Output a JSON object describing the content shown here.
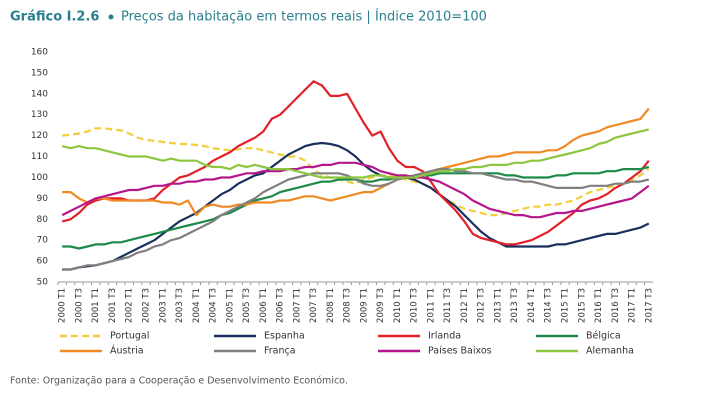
{
  "chart_data": {
    "type": "line",
    "title": "Gráfico I.2.6",
    "subtitle": "Preços da habitação em termos reais | Índice 2010=100",
    "source": "Fonte: Organização para a Cooperação e Desenvolvimento Económico.",
    "legend": "bottom",
    "ylim": [
      50,
      160
    ],
    "yticks": [
      50,
      60,
      70,
      80,
      90,
      100,
      110,
      120,
      130,
      140,
      150,
      160
    ],
    "categories": [
      "2000 T1",
      null,
      "2000 T3",
      null,
      "2001 T1",
      null,
      "2001 T3",
      null,
      "2002 T1",
      null,
      "2002 T3",
      null,
      "2003 T1",
      null,
      "2003 T3",
      null,
      "2004 T1",
      null,
      "2004 T3",
      null,
      "2005 T1",
      null,
      "2005 T3",
      null,
      "2006 T1",
      null,
      "2006 T3",
      null,
      "2007 T1",
      null,
      "2007 T3",
      null,
      "2008 T1",
      null,
      "2008 T3",
      null,
      "2009 T1",
      null,
      "2009 T3",
      null,
      "2010 T1",
      null,
      "2010 T3",
      null,
      "2011 T1",
      null,
      "2011 T3",
      null,
      "2012 T1",
      null,
      "2012 T3",
      null,
      "2013 T1",
      null,
      "2013 T3",
      null,
      "2014 T1",
      null,
      "2014 T3",
      null,
      "2015 T1",
      null,
      "2015 T3",
      null,
      "2016 T1",
      null,
      "2016 T3",
      null,
      "2017 T1",
      null,
      "2017 T3"
    ],
    "series": [
      {
        "name": "Portugal",
        "color": "#f2cf3a",
        "line_style": "dashed",
        "values": [
          120,
          120.5,
          121,
          122,
          123.5,
          123.5,
          123,
          122.5,
          121,
          119,
          118,
          117.5,
          117,
          116.5,
          116,
          116,
          115.5,
          115,
          114,
          113.5,
          113,
          113.5,
          114,
          114,
          113,
          112,
          111,
          110,
          110,
          108,
          104,
          101,
          100,
          99,
          98,
          97,
          99,
          100,
          101,
          101,
          100,
          99,
          98,
          97,
          95,
          92,
          89,
          87,
          85,
          84,
          83,
          82,
          82,
          83,
          84,
          85,
          86,
          86,
          87,
          87,
          88,
          89,
          91,
          93,
          94,
          95,
          96,
          97,
          99,
          101,
          104
        ]
      },
      {
        "name": "Espanha",
        "color": "#1b2f5e",
        "values": [
          56,
          56,
          57,
          57.5,
          58,
          59,
          60,
          62,
          64,
          66,
          68,
          70,
          73,
          76,
          79,
          81,
          83,
          86,
          89,
          92,
          94,
          97,
          99,
          101,
          102,
          105,
          108,
          111,
          113,
          115,
          116,
          116.5,
          116,
          115,
          113,
          110,
          106,
          103,
          101,
          100,
          100,
          100,
          99,
          97,
          95,
          92,
          89,
          86,
          82,
          78,
          74,
          71,
          69,
          67,
          67,
          67,
          67,
          67,
          67,
          68,
          68,
          69,
          70,
          71,
          72,
          73,
          73,
          74,
          75,
          76,
          78
        ]
      },
      {
        "name": "Irlanda",
        "color": "#e3202a",
        "values": [
          79,
          80,
          83,
          87,
          89,
          90,
          90,
          90,
          89,
          89,
          89,
          90,
          94,
          97,
          100,
          101,
          103,
          105,
          108,
          110,
          112,
          115,
          117,
          119,
          122,
          128,
          130,
          134,
          138,
          142,
          146,
          144,
          139,
          139,
          140,
          133,
          126,
          120,
          122,
          114,
          108,
          105,
          105,
          103,
          98,
          92,
          88,
          84,
          79,
          73,
          71,
          70,
          69,
          68,
          68,
          69,
          70,
          72,
          74,
          77,
          80,
          83,
          87,
          89,
          90,
          92,
          95,
          97,
          100,
          103,
          108
        ]
      },
      {
        "name": "Bélgica",
        "color": "#1e8a4a",
        "values": [
          67,
          67,
          66,
          67,
          68,
          68,
          69,
          69,
          70,
          71,
          72,
          73,
          74,
          75,
          76,
          77,
          78,
          79,
          80,
          82,
          83,
          85,
          87,
          89,
          90,
          91,
          93,
          94,
          95,
          96,
          97,
          98,
          98,
          99,
          99,
          99,
          98,
          98,
          99,
          99,
          100,
          100,
          101,
          101,
          101,
          102,
          102,
          102,
          102,
          102,
          102,
          102,
          102,
          101,
          101,
          100,
          100,
          100,
          100,
          101,
          101,
          102,
          102,
          102,
          102,
          103,
          103,
          104,
          104,
          104,
          105
        ]
      },
      {
        "name": "Áustria",
        "color": "#f08a24",
        "values": [
          93,
          93,
          90,
          88,
          90,
          90,
          89,
          89,
          89,
          89,
          89,
          89,
          88,
          88,
          87,
          89,
          82,
          86,
          87,
          86,
          86,
          87,
          87,
          88,
          88,
          88,
          89,
          89,
          90,
          91,
          91,
          90,
          89,
          90,
          91,
          92,
          93,
          93,
          95,
          97,
          99,
          100,
          101,
          102,
          103,
          104,
          105,
          106,
          107,
          108,
          109,
          110,
          110,
          111,
          112,
          112,
          112,
          112,
          113,
          113,
          115,
          118,
          120,
          121,
          122,
          124,
          125,
          126,
          127,
          128,
          133
        ]
      },
      {
        "name": "França",
        "color": "#808080",
        "values": [
          56,
          56,
          57,
          58,
          58,
          59,
          60,
          61,
          62,
          64,
          65,
          67,
          68,
          70,
          71,
          73,
          75,
          77,
          79,
          82,
          84,
          86,
          88,
          90,
          93,
          95,
          97,
          99,
          100,
          101,
          102,
          102,
          102,
          102,
          101,
          99,
          97,
          96,
          96,
          97,
          99,
          100,
          101,
          102,
          103,
          104,
          104,
          103,
          103,
          102,
          102,
          101,
          100,
          99,
          99,
          98,
          98,
          97,
          96,
          95,
          95,
          95,
          95,
          96,
          96,
          96,
          97,
          97,
          98,
          98,
          99
        ]
      },
      {
        "name": "Países Baixos",
        "color": "#b5178b",
        "values": [
          82,
          84,
          86,
          88,
          90,
          91,
          92,
          93,
          94,
          94,
          95,
          96,
          96,
          97,
          97,
          98,
          98,
          99,
          99,
          100,
          100,
          101,
          102,
          102,
          103,
          103,
          103,
          104,
          104,
          105,
          105,
          106,
          106,
          107,
          107,
          107,
          106,
          105,
          103,
          102,
          101,
          101,
          100,
          100,
          99,
          98,
          96,
          94,
          92,
          89,
          87,
          85,
          84,
          83,
          82,
          82,
          81,
          81,
          82,
          83,
          83,
          84,
          84,
          85,
          86,
          87,
          88,
          89,
          90,
          93,
          96
        ]
      },
      {
        "name": "Alemanha",
        "color": "#8dc63f",
        "values": [
          115,
          114,
          115,
          114,
          114,
          113,
          112,
          111,
          110,
          110,
          110,
          109,
          108,
          109,
          108,
          108,
          108,
          106,
          105,
          105,
          104,
          106,
          105,
          106,
          105,
          104,
          104,
          104,
          103,
          102,
          101,
          100,
          100,
          100,
          100,
          100,
          100,
          101,
          101,
          100,
          100,
          100,
          100,
          101,
          102,
          103,
          103,
          104,
          104,
          105,
          105,
          106,
          106,
          106,
          107,
          107,
          108,
          108,
          109,
          110,
          111,
          112,
          113,
          114,
          116,
          117,
          119,
          120,
          121,
          122,
          123
        ]
      }
    ]
  }
}
